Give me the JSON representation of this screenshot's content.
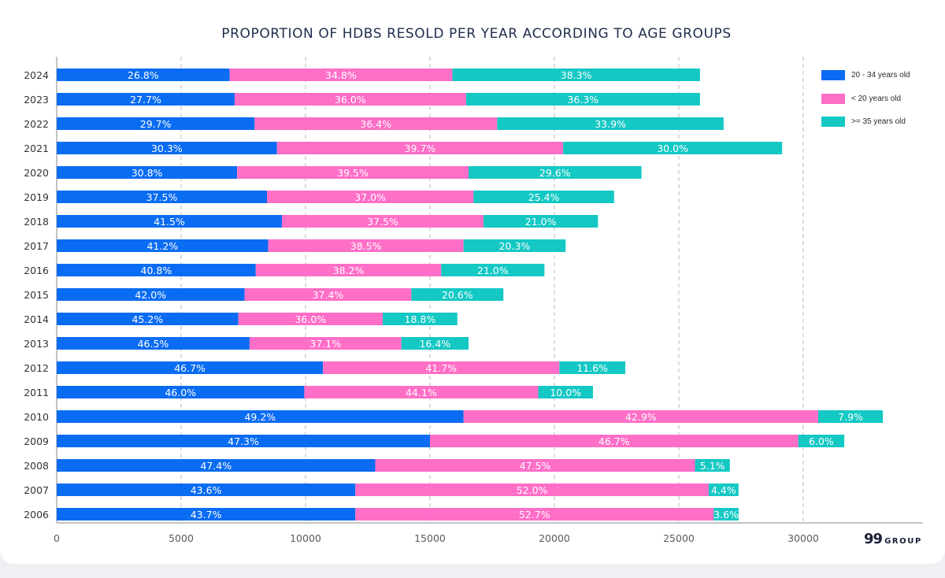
{
  "title": "PROPORTION OF HDBS RESOLD PER YEAR ACCORDING TO AGE GROUPS",
  "brand": {
    "mark": "99",
    "text": "GROUP"
  },
  "colors": {
    "young": "#0a6cf2",
    "under20": "#ff6ec7",
    "over35": "#14c8c4",
    "axis": "#5a5a5a",
    "grid": "#c8c8c8"
  },
  "chart_data": {
    "type": "bar",
    "orientation": "horizontal",
    "stacked": true,
    "title": "PROPORTION OF HDBS RESOLD PER YEAR ACCORDING TO AGE GROUPS",
    "xlim": [
      0,
      33000
    ],
    "xticks": [
      0,
      5000,
      10000,
      15000,
      20000,
      25000,
      30000
    ],
    "grid": "vertical dashed",
    "legend_position": "right",
    "categories": [
      "2024",
      "2023",
      "2022",
      "2021",
      "2020",
      "2019",
      "2018",
      "2017",
      "2016",
      "2015",
      "2014",
      "2013",
      "2012",
      "2011",
      "2010",
      "2009",
      "2008",
      "2007",
      "2006"
    ],
    "series": [
      {
        "name": "20 - 34 years old",
        "values": [
          6950,
          7150,
          7950,
          8850,
          7250,
          8450,
          9050,
          8500,
          8000,
          7550,
          7300,
          7750,
          10700,
          9950,
          16350,
          15000,
          12800,
          12000,
          12000
        ],
        "labels": [
          "26.8%",
          "27.7%",
          "29.7%",
          "30.3%",
          "30.8%",
          "37.5%",
          "41.5%",
          "41.2%",
          "40.8%",
          "42.0%",
          "45.2%",
          "46.5%",
          "46.7%",
          "46.0%",
          "49.2%",
          "47.3%",
          "47.4%",
          "43.6%",
          "43.7%"
        ]
      },
      {
        "name": "< 20 years old",
        "values": [
          8950,
          9300,
          9750,
          11500,
          9300,
          8300,
          8100,
          7850,
          7450,
          6700,
          5800,
          6100,
          9500,
          9400,
          14250,
          14800,
          12850,
          14200,
          14400
        ],
        "labels": [
          "34.8%",
          "36.0%",
          "36.4%",
          "39.7%",
          "39.5%",
          "37.0%",
          "37.5%",
          "38.5%",
          "38.2%",
          "37.4%",
          "36.0%",
          "37.1%",
          "41.7%",
          "44.1%",
          "42.9%",
          "46.7%",
          "47.5%",
          "52.0%",
          "52.7%"
        ]
      },
      {
        "name": ">= 35 years old",
        "values": [
          9950,
          9400,
          9100,
          8800,
          6950,
          5650,
          4600,
          4100,
          4150,
          3700,
          3000,
          2700,
          2650,
          2200,
          2600,
          1850,
          1400,
          1200,
          1000
        ],
        "labels": [
          "38.3%",
          "36.3%",
          "33.9%",
          "30.0%",
          "29.6%",
          "25.4%",
          "21.0%",
          "20.3%",
          "21.0%",
          "20.6%",
          "18.8%",
          "16.4%",
          "11.6%",
          "10.0%",
          "7.9%",
          "6.0%",
          "5.1%",
          "4.4%",
          "3.6%"
        ]
      }
    ]
  }
}
